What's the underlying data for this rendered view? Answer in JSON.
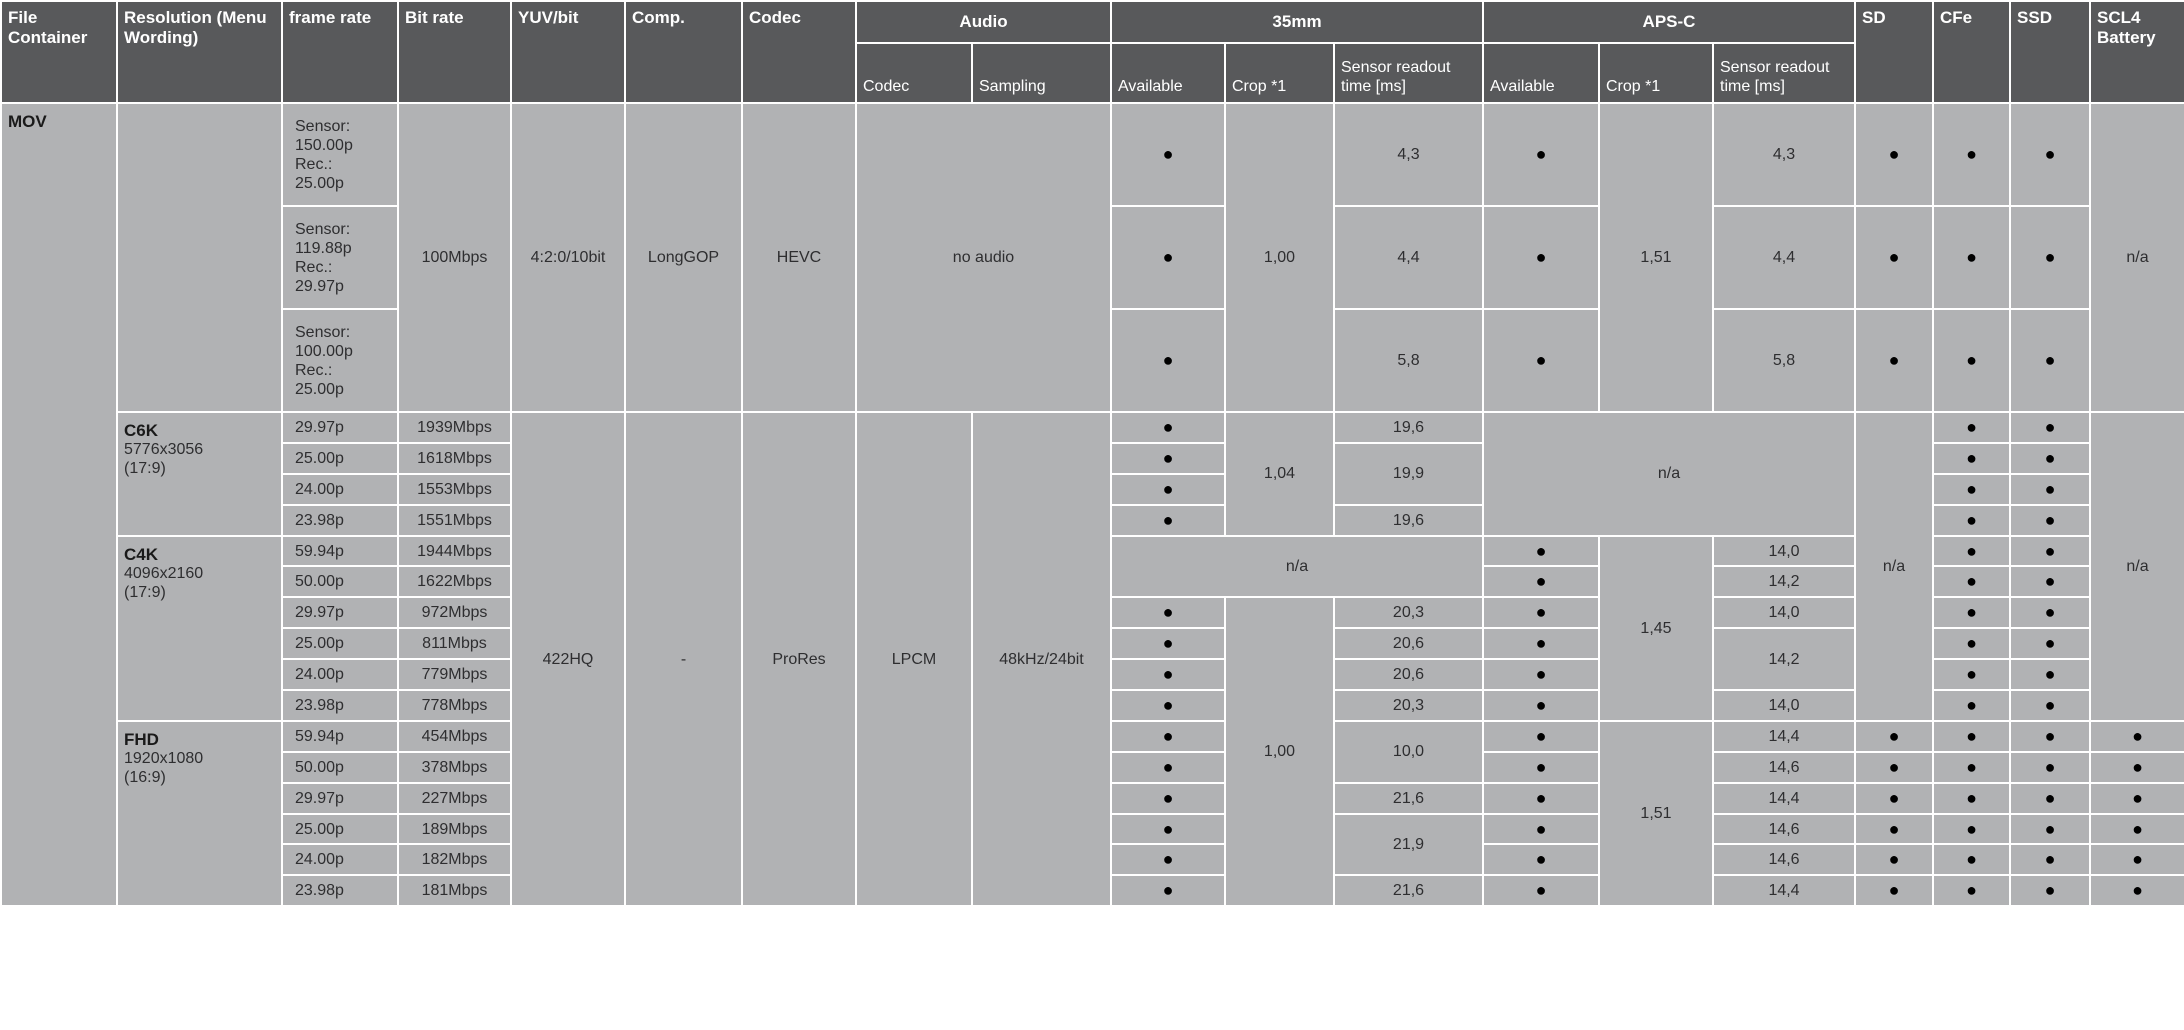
{
  "colors": {
    "header_bg": "#58595b",
    "body_bg": "#b1b2b4",
    "grid": "#ffffff"
  },
  "header": {
    "file_container": "File Container",
    "resolution": "Resolution (Menu Wording)",
    "frame_rate": "frame rate",
    "bit_rate": "Bit rate",
    "yuv_bit": "YUV/bit",
    "comp": "Comp.",
    "codec": "Codec",
    "audio": "Audio",
    "audio_codec": "Codec",
    "audio_sampling": "Sampling",
    "ff": "35mm",
    "apsc": "APS-C",
    "available": "Available",
    "crop": "Crop *1",
    "sensor_readout": "Sensor readout time [ms]",
    "sd": "SD",
    "cfe": "CFe",
    "ssd": "SSD",
    "scl4": "SCL4 Battery"
  },
  "body_rows": [
    [
      "MOV",
      "",
      "Sensor:\n150.00p\nRec.:\n25.00p",
      "100Mbps",
      "4:2:0/10bit",
      "LongGOP",
      "HEVC",
      "no audio",
      "●",
      "1,00",
      "4,3",
      "●",
      "1,51",
      "4,3",
      "●",
      "●",
      "●",
      "n/a"
    ],
    [
      "Sensor:\n119.88p\nRec.:\n29.97p",
      "●",
      "4,4",
      "●",
      "4,4",
      "●",
      "●",
      "●"
    ],
    [
      "Sensor:\n100.00p\nRec.:\n25.00p",
      "●",
      "5,8",
      "●",
      "5,8",
      "●",
      "●",
      "●"
    ],
    [
      {
        "name": "C6K",
        "detail": "5776x3056\n(17:9)"
      },
      "29.97p",
      "1939Mbps",
      "422HQ",
      "-",
      "ProRes",
      "LPCM",
      "48kHz/24bit",
      "●",
      "1,04",
      "19,6",
      "n/a",
      "n/a",
      "●",
      "●",
      "n/a"
    ],
    [
      "25.00p",
      "1618Mbps",
      "●",
      "19,9",
      "●",
      "●"
    ],
    [
      "24.00p",
      "1553Mbps",
      "●",
      "●",
      "●"
    ],
    [
      "23.98p",
      "1551Mbps",
      "●",
      "19,6",
      "●",
      "●"
    ],
    [
      {
        "name": "C4K",
        "detail": "4096x2160\n(17:9)"
      },
      "59.94p",
      "1944Mbps",
      "n/a",
      "●",
      "1,45",
      "14,0",
      "●",
      "●"
    ],
    [
      "50.00p",
      "1622Mbps",
      "●",
      "14,2",
      "●",
      "●"
    ],
    [
      "29.97p",
      "972Mbps",
      "●",
      "1,00",
      "20,3",
      "●",
      "14,0",
      "●",
      "●"
    ],
    [
      "25.00p",
      "811Mbps",
      "●",
      "20,6",
      "●",
      "14,2",
      "●",
      "●"
    ],
    [
      "24.00p",
      "779Mbps",
      "●",
      "20,6",
      "●",
      "●",
      "●"
    ],
    [
      "23.98p",
      "778Mbps",
      "●",
      "20,3",
      "●",
      "14,0",
      "●",
      "●"
    ],
    [
      {
        "name": "FHD",
        "detail": "1920x1080\n(16:9)"
      },
      "59.94p",
      "454Mbps",
      "●",
      "10,0",
      "●",
      "1,51",
      "14,4",
      "●",
      "●",
      "●",
      "●"
    ],
    [
      "50.00p",
      "378Mbps",
      "●",
      "●",
      "14,6",
      "●",
      "●",
      "●",
      "●"
    ],
    [
      "29.97p",
      "227Mbps",
      "●",
      "21,6",
      "●",
      "14,4",
      "●",
      "●",
      "●",
      "●"
    ],
    [
      "25.00p",
      "189Mbps",
      "●",
      "21,9",
      "●",
      "14,6",
      "●",
      "●",
      "●",
      "●"
    ],
    [
      "24.00p",
      "182Mbps",
      "●",
      "●",
      "14,6",
      "●",
      "●",
      "●",
      "●"
    ],
    [
      "23.98p",
      "181Mbps",
      "●",
      "21,6",
      "●",
      "14,4",
      "●",
      "●",
      "●",
      "●"
    ]
  ]
}
